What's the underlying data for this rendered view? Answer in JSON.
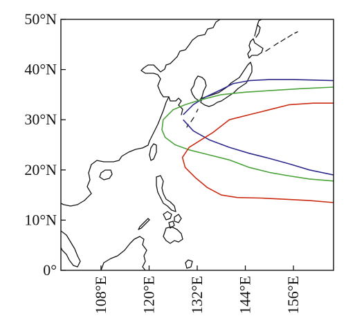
{
  "map": {
    "lon_range": [
      98,
      166
    ],
    "lat_range": [
      0,
      50
    ],
    "lat_ticks": [
      {
        "value": 50,
        "label": "50°N"
      },
      {
        "value": 40,
        "label": "40°N"
      },
      {
        "value": 30,
        "label": "30°N"
      },
      {
        "value": 20,
        "label": "20°N"
      },
      {
        "value": 10,
        "label": "10°N"
      },
      {
        "value": 0,
        "label": "0°"
      }
    ],
    "lon_ticks": [
      {
        "value": 108,
        "label": "108°E"
      },
      {
        "value": 120,
        "label": "120°E"
      },
      {
        "value": 132,
        "label": "132°E"
      },
      {
        "value": 144,
        "label": "144°E"
      },
      {
        "value": 156,
        "label": "156°E"
      }
    ],
    "contours": [
      {
        "color": "#2e2a8c",
        "points": [
          [
            128.5,
            31
          ],
          [
            131,
            33
          ],
          [
            134,
            34.5
          ],
          [
            138,
            36
          ],
          [
            141,
            37.2
          ],
          [
            145,
            37.8
          ],
          [
            150,
            38
          ],
          [
            156,
            38
          ],
          [
            166,
            37.8
          ]
        ]
      },
      {
        "color": "#2e2a8c",
        "points": [
          [
            128.5,
            30
          ],
          [
            131,
            27.8
          ],
          [
            135,
            26
          ],
          [
            140,
            24.5
          ],
          [
            145,
            23.3
          ],
          [
            150,
            22.3
          ],
          [
            155,
            21.2
          ],
          [
            160,
            20
          ],
          [
            166,
            19
          ]
        ]
      },
      {
        "color": "#4aa23a",
        "points": [
          [
            166,
            36.5
          ],
          [
            158,
            36.2
          ],
          [
            150,
            35.8
          ],
          [
            144,
            35.5
          ],
          [
            138,
            35
          ],
          [
            133,
            34
          ],
          [
            129,
            33
          ],
          [
            126,
            32
          ],
          [
            123.5,
            30
          ],
          [
            123.2,
            28
          ],
          [
            124,
            26.5
          ],
          [
            126.5,
            25
          ],
          [
            130,
            24
          ],
          [
            134,
            23.2
          ],
          [
            140,
            22
          ],
          [
            145,
            20.5
          ],
          [
            150,
            19.5
          ],
          [
            155,
            18.8
          ],
          [
            160,
            18.2
          ],
          [
            166,
            17.8
          ]
        ]
      },
      {
        "color": "#cc2a12",
        "points": [
          [
            166,
            33.3
          ],
          [
            161,
            33.3
          ],
          [
            155,
            33
          ],
          [
            150,
            32
          ],
          [
            145,
            31
          ],
          [
            140,
            30
          ],
          [
            136,
            27.5
          ],
          [
            133,
            26
          ],
          [
            130,
            24.5
          ],
          [
            128.3,
            22.5
          ],
          [
            129,
            20.5
          ],
          [
            131.5,
            18.5
          ],
          [
            134.5,
            16.5
          ],
          [
            138,
            15
          ],
          [
            142,
            14.5
          ],
          [
            148,
            14.4
          ],
          [
            153,
            14.2
          ],
          [
            160,
            13.9
          ],
          [
            166,
            13.5
          ]
        ]
      }
    ]
  }
}
